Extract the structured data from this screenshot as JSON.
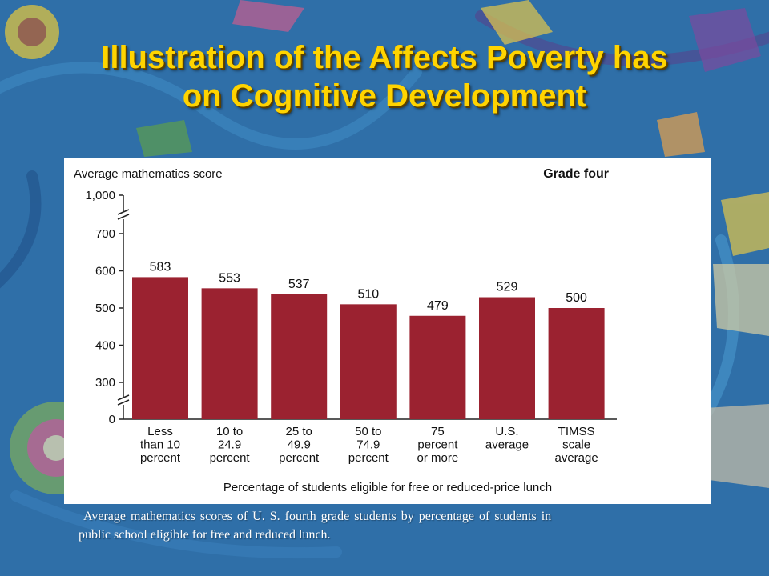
{
  "slide": {
    "title_line1": "Illustration of the Affects Poverty has",
    "title_line2": "on Cognitive Development",
    "caption_line1": "Average mathematics scores of U. S. fourth grade students by percentage of students in",
    "caption_line2": "public school eligible for free and reduced lunch.",
    "title_color": "#ffd400",
    "background_color": "#2f6fa8"
  },
  "chart_data": {
    "type": "bar",
    "title": "Grade four",
    "ylabel": "Average mathematics score",
    "xlabel": "Percentage of students eligible for free or reduced-price lunch",
    "categories": [
      [
        "Less",
        "than 10",
        "percent"
      ],
      [
        "10 to",
        "24.9",
        "percent"
      ],
      [
        "25 to",
        "49.9",
        "percent"
      ],
      [
        "50 to",
        "74.9",
        "percent"
      ],
      [
        "75",
        "percent",
        "or more"
      ],
      [
        "U.S.",
        "average"
      ],
      [
        "TIMSS",
        "scale",
        "average"
      ]
    ],
    "values": [
      583,
      553,
      537,
      510,
      479,
      529,
      500
    ],
    "data_labels": [
      "583",
      "553",
      "537",
      "510",
      "479",
      "529",
      "500"
    ],
    "yticks": [
      {
        "value": 0,
        "label": "0"
      },
      {
        "value": 300,
        "label": "300"
      },
      {
        "value": 400,
        "label": "400"
      },
      {
        "value": 500,
        "label": "500"
      },
      {
        "value": 600,
        "label": "600"
      },
      {
        "value": 700,
        "label": "700"
      },
      {
        "value": 1000,
        "label": "1,000"
      }
    ],
    "axis_breaks": [
      "0-300",
      "700-1,000"
    ],
    "ylim": [
      0,
      1000
    ],
    "bar_color": "#9b2230",
    "grid": false,
    "legend": "none"
  }
}
